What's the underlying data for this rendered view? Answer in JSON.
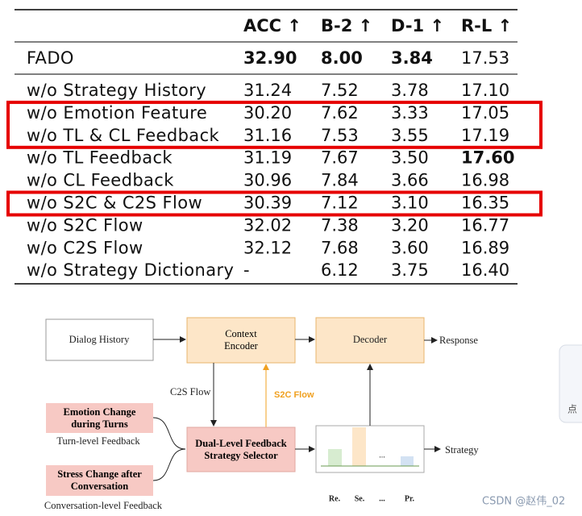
{
  "table": {
    "columns": [
      "",
      "ACC ↑",
      "B-2 ↑",
      "D-1 ↑",
      "R-L ↑"
    ],
    "rows": [
      {
        "name": "FADO",
        "values": [
          "32.90",
          "8.00",
          "3.84",
          "17.53"
        ],
        "bold": [
          0,
          1,
          2
        ]
      },
      {
        "name": "w/o Strategy History",
        "values": [
          "31.24",
          "7.52",
          "3.78",
          "17.10"
        ]
      },
      {
        "name": "w/o Emotion Feature",
        "values": [
          "30.20",
          "7.62",
          "3.33",
          "17.05"
        ]
      },
      {
        "name": "w/o TL & CL Feedback",
        "values": [
          "31.16",
          "7.53",
          "3.55",
          "17.19"
        ]
      },
      {
        "name": "w/o TL Feedback",
        "values": [
          "31.19",
          "7.67",
          "3.50",
          "17.60"
        ],
        "bold": [
          3
        ]
      },
      {
        "name": "w/o CL Feedback",
        "values": [
          "30.96",
          "7.84",
          "3.66",
          "16.98"
        ]
      },
      {
        "name": "w/o S2C & C2S Flow",
        "values": [
          "30.39",
          "7.12",
          "3.10",
          "16.35"
        ]
      },
      {
        "name": "w/o S2C Flow",
        "values": [
          "32.02",
          "7.38",
          "3.20",
          "16.77"
        ]
      },
      {
        "name": "w/o C2S Flow",
        "values": [
          "32.12",
          "7.68",
          "3.60",
          "16.89"
        ]
      },
      {
        "name": "w/o Strategy Dictionary",
        "values": [
          "-",
          "6.12",
          "3.75",
          "16.40"
        ]
      }
    ],
    "highlight_rows": [
      [
        2,
        3
      ],
      [
        6,
        6
      ]
    ],
    "highlight_color": "#e60000"
  },
  "diagram": {
    "dialog_history": "Dialog History",
    "context_encoder": "Context Encoder",
    "decoder": "Decoder",
    "response": "Response",
    "c2s_flow": "C2S Flow",
    "s2c_flow": "S2C Flow",
    "emotion_change": "Emotion Change during Turns",
    "turn_feedback": "Turn-level Feedback",
    "stress_change": "Stress Change after Conversation",
    "conversation_feedback": "Conversation-level Feedback",
    "selector": "Dual-Level Feedback Strategy Selector",
    "strategy": "Strategy",
    "bar_labels": [
      "Re.",
      "Se.",
      "...",
      "Pr."
    ],
    "bar_gap": "..."
  },
  "watermark": "CSDN @赵伟_02",
  "side_widget": "点"
}
